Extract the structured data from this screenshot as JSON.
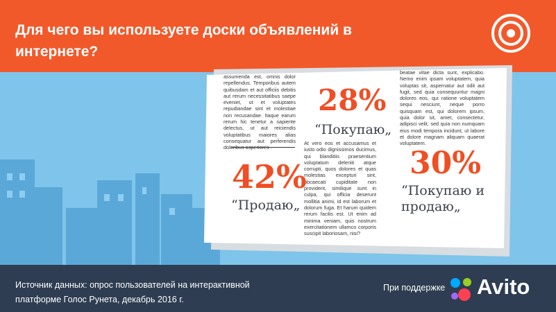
{
  "header": {
    "title": "Для чего вы используете доски объявлений в интернете?"
  },
  "newspaper": {
    "columns": [
      "assumenda est, omnis dolor repellendus. Temporibus autem quibusdam et aut officiis debitis aut rerum necessitatibus saepe eveniet, ut et voluptates repudiandae sint et molestiae non recusandae. Itaque earum rerum hic tenetur a sapiente delectus, ut aut reiciendis voluptatibus maiores alias consequatur aut perferendis doloribus asperiores .",
      "At vero eos et accusamus et iusto odio dignissimos ducimus, qui blanditiis praesentium voluptatum deleniti atque corrupti, quos dolores et quas molestias excepturi sint, obcaecati cupiditate non provident, similique sunt in culpa, qui officia deserunt mollitia animi, id est laborum et dolorum fuga. Et harum quidem rerum facilis est. Ut enim ad minima veniam, quis nostrum exercitationem ullamco corporis suscipit laboriosam, nisi?",
      "beatae vitae dicta sunt, explicabo. Nemo enim ipsam voluptatem, quia voluptas sit, aspernatur aut odit aut fugit, sed quia consequuntur magni dolores eos, qui ratione voluptatem sequi nesciunt, neque porro quisquam est, qui dolorem ipsum, quia dolor sit, amet, consectetur, adipisci velit, sed quia non numquam eius modi tempora incidunt, ut labore et dolore magnam aliquam quaerat voluptatem."
    ]
  },
  "stats": [
    {
      "value": "28%",
      "label": "“Покупаю„"
    },
    {
      "value": "42%",
      "label": "“Продаю„"
    },
    {
      "value": "30%",
      "label": "“Покупаю и продаю„"
    }
  ],
  "footer": {
    "source": [
      "Источник данных: опрос пользователей на интерактивной",
      "платформе Голос Рунета, декабрь 2016 г."
    ],
    "sponsor": "При поддержке",
    "logo": "Avito"
  }
}
